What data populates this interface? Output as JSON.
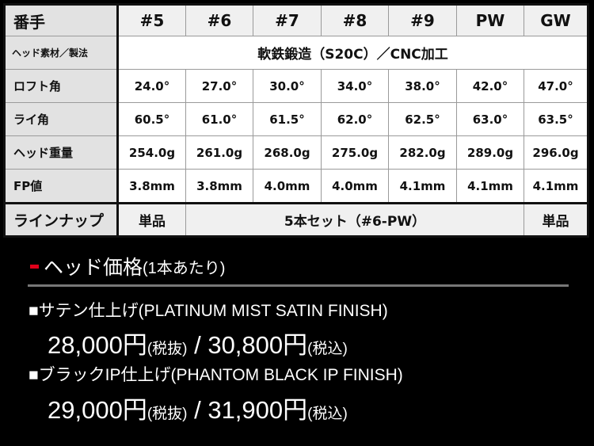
{
  "spec_table": {
    "header": {
      "label": "番手",
      "columns": [
        "#5",
        "#6",
        "#7",
        "#8",
        "#9",
        "PW",
        "GW"
      ]
    },
    "material": {
      "label": "ヘッド素材／製法",
      "value": "軟鉄鍛造（S20C）／CNC加工"
    },
    "rows": [
      {
        "label": "ロフト角",
        "values": [
          "24.0°",
          "27.0°",
          "30.0°",
          "34.0°",
          "38.0°",
          "42.0°",
          "47.0°"
        ]
      },
      {
        "label": "ライ角",
        "values": [
          "60.5°",
          "61.0°",
          "61.5°",
          "62.0°",
          "62.5°",
          "63.0°",
          "63.5°"
        ]
      },
      {
        "label": "ヘッド重量",
        "values": [
          "254.0g",
          "261.0g",
          "268.0g",
          "275.0g",
          "282.0g",
          "289.0g",
          "296.0g"
        ]
      },
      {
        "label": "FP値",
        "values": [
          "3.8mm",
          "3.8mm",
          "4.0mm",
          "4.0mm",
          "4.1mm",
          "4.1mm",
          "4.1mm"
        ]
      }
    ],
    "lineup": {
      "label": "ラインナップ",
      "first": "単品",
      "set": "5本セット（#6-PW）",
      "last": "単品"
    }
  },
  "pricing": {
    "title": "ヘッド価格",
    "title_sub": "(1本あたり)",
    "accent_color": "#e0001a",
    "items": [
      {
        "name": "■サテン仕上げ(PLATINUM MIST SATIN FINISH)",
        "price_ex": "28,000円",
        "ex_label": "(税抜)",
        "sep": " / ",
        "price_in": "30,800円",
        "in_label": "(税込)"
      },
      {
        "name": "■ブラックIP仕上げ(PHANTOM BLACK IP FINISH)",
        "price_ex": "29,000円",
        "ex_label": "(税抜)",
        "sep": " / ",
        "price_in": "31,900円",
        "in_label": "(税込)"
      }
    ]
  }
}
